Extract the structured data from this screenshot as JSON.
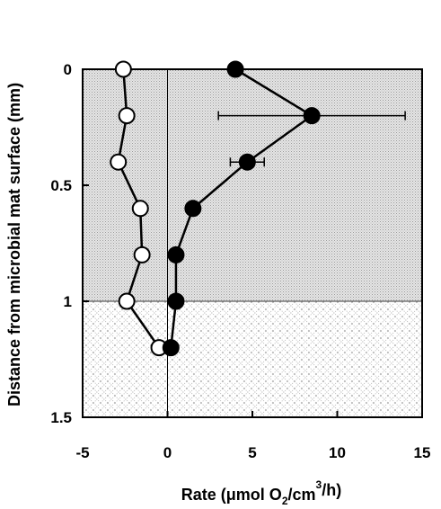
{
  "chart_data": {
    "type": "line",
    "title": "",
    "xlabel": {
      "parts": [
        {
          "text": "Rate (μmol O",
          "style": "normal"
        },
        {
          "text": "2",
          "style": "sub"
        },
        {
          "text": "/cm",
          "style": "normal"
        },
        {
          "text": "3",
          "style": "sup"
        },
        {
          "text": "/h)",
          "style": "normal"
        }
      ]
    },
    "ylabel": "Distance from microbial mat surface (mm)",
    "xlim": [
      -5,
      15
    ],
    "ylim": [
      0,
      1.5
    ],
    "y_inverted": true,
    "x_ticks": [
      -5,
      0,
      5,
      10,
      15
    ],
    "x_tick_labels": [
      "-5",
      "0",
      "5",
      "10",
      "15"
    ],
    "y_ticks": [
      0,
      0.5,
      1,
      1.5
    ],
    "y_tick_labels": [
      "0",
      "0.5",
      "1",
      "1.5"
    ],
    "zero_line_x": 0,
    "grid": false,
    "legend": "none",
    "regions": [
      {
        "y_range": [
          0,
          1
        ],
        "fill": "stipple-gray"
      },
      {
        "y_range": [
          1,
          1.5
        ],
        "fill": "crosshatch-dotted"
      }
    ],
    "series": [
      {
        "marker": "open-circle",
        "points": [
          {
            "x": -2.6,
            "y": 0.0
          },
          {
            "x": -2.4,
            "y": 0.2
          },
          {
            "x": -2.9,
            "y": 0.4
          },
          {
            "x": -1.6,
            "y": 0.6
          },
          {
            "x": -1.5,
            "y": 0.8
          },
          {
            "x": -2.4,
            "y": 1.0
          },
          {
            "x": -0.5,
            "y": 1.2
          }
        ]
      },
      {
        "marker": "filled-circle",
        "points": [
          {
            "x": 4.0,
            "y": 0.0
          },
          {
            "x": 8.5,
            "y": 0.2,
            "xerr": [
              3.0,
              14.0
            ]
          },
          {
            "x": 4.7,
            "y": 0.4,
            "xerr": [
              3.7,
              5.7
            ]
          },
          {
            "x": 1.5,
            "y": 0.6
          },
          {
            "x": 0.5,
            "y": 0.8
          },
          {
            "x": 0.5,
            "y": 1.0
          },
          {
            "x": 0.2,
            "y": 1.2
          }
        ]
      }
    ]
  }
}
